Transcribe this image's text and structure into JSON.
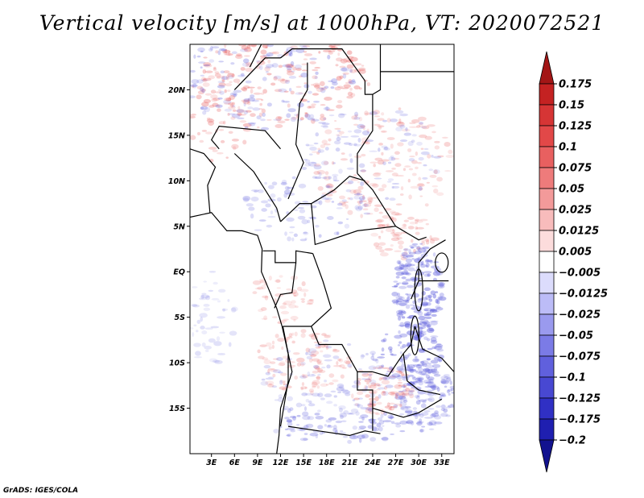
{
  "chart_data": {
    "type": "heatmap",
    "title": "Vertical velocity [m/s] at 1000hPa, VT: 2020072521",
    "variable": "Vertical velocity",
    "units": "m/s",
    "level": "1000hPa",
    "valid_time": "2020072521",
    "x_tick_labels": [
      "3E",
      "6E",
      "9E",
      "12E",
      "15E",
      "18E",
      "21E",
      "24E",
      "27E",
      "30E",
      "33E"
    ],
    "x_tick_values": [
      3,
      6,
      9,
      12,
      15,
      18,
      21,
      24,
      27,
      30,
      33
    ],
    "xlim": [
      0.2,
      34.6
    ],
    "y_tick_labels": [
      "20N",
      "15N",
      "10N",
      "5N",
      "EQ",
      "5S",
      "10S",
      "15S"
    ],
    "y_tick_values": [
      20,
      15,
      10,
      5,
      0,
      -5,
      -10,
      -15
    ],
    "ylim": [
      -20,
      25
    ],
    "colorbar": {
      "labels": [
        "0.175",
        "0.15",
        "0.125",
        "0.1",
        "0.075",
        "0.05",
        "0.025",
        "0.0125",
        "0.005",
        "−0.005",
        "−0.0125",
        "−0.025",
        "−0.05",
        "−0.075",
        "−0.1",
        "−0.125",
        "−0.175",
        "−0.2"
      ],
      "colors": [
        "#a31616",
        "#c42222",
        "#d63535",
        "#e24848",
        "#e86060",
        "#ee7b7b",
        "#f39a9a",
        "#f8bcbc",
        "#fcdcdc",
        "#ffffff",
        "#dcdcfc",
        "#bcbcf7",
        "#9a9aee",
        "#7b7be6",
        "#6060dd",
        "#4848d2",
        "#3030c4",
        "#1f1fb0",
        "#12128f"
      ],
      "orientation": "vertical",
      "position": "right"
    }
  },
  "credit": "GrADS: IGES/COLA",
  "colors": {
    "positive": "#e86060",
    "negative": "#6060dd",
    "background": "#ffffff"
  }
}
